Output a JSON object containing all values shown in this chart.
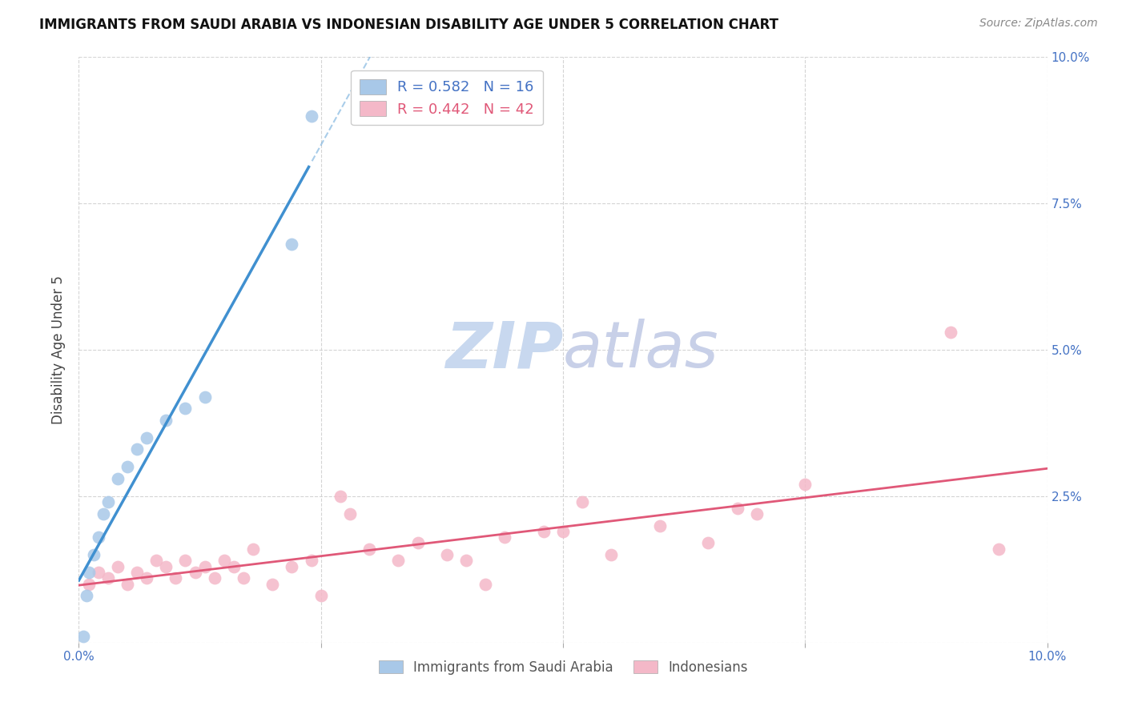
{
  "title": "IMMIGRANTS FROM SAUDI ARABIA VS INDONESIAN DISABILITY AGE UNDER 5 CORRELATION CHART",
  "source": "Source: ZipAtlas.com",
  "ylabel": "Disability Age Under 5",
  "xlim": [
    0,
    0.1
  ],
  "ylim": [
    0,
    0.1
  ],
  "background_color": "#ffffff",
  "grid_color": "#d0d0d0",
  "saudi_R": 0.582,
  "saudi_N": 16,
  "indonesian_R": 0.442,
  "indonesian_N": 42,
  "saudi_color": "#a8c8e8",
  "indonesian_color": "#f4b8c8",
  "trend_saudi_color": "#4090d0",
  "trend_indonesian_color": "#e05878",
  "saudi_x": [
    0.0005,
    0.0008,
    0.001,
    0.0015,
    0.002,
    0.0025,
    0.003,
    0.004,
    0.005,
    0.006,
    0.007,
    0.009,
    0.011,
    0.013,
    0.022,
    0.024
  ],
  "saudi_y": [
    0.001,
    0.008,
    0.012,
    0.015,
    0.018,
    0.022,
    0.024,
    0.028,
    0.03,
    0.033,
    0.035,
    0.038,
    0.04,
    0.042,
    0.068,
    0.09
  ],
  "indonesian_x": [
    0.001,
    0.002,
    0.003,
    0.004,
    0.005,
    0.006,
    0.007,
    0.008,
    0.009,
    0.01,
    0.011,
    0.012,
    0.013,
    0.014,
    0.015,
    0.016,
    0.017,
    0.018,
    0.02,
    0.022,
    0.024,
    0.025,
    0.027,
    0.028,
    0.03,
    0.033,
    0.035,
    0.038,
    0.04,
    0.042,
    0.044,
    0.048,
    0.05,
    0.052,
    0.055,
    0.06,
    0.065,
    0.068,
    0.07,
    0.075,
    0.09,
    0.095
  ],
  "indonesian_y": [
    0.01,
    0.012,
    0.011,
    0.013,
    0.01,
    0.012,
    0.011,
    0.014,
    0.013,
    0.011,
    0.014,
    0.012,
    0.013,
    0.011,
    0.014,
    0.013,
    0.011,
    0.016,
    0.01,
    0.013,
    0.014,
    0.008,
    0.025,
    0.022,
    0.016,
    0.014,
    0.017,
    0.015,
    0.014,
    0.01,
    0.018,
    0.019,
    0.019,
    0.024,
    0.015,
    0.02,
    0.017,
    0.023,
    0.022,
    0.027,
    0.053,
    0.016
  ],
  "watermark_zip": "ZIP",
  "watermark_atlas": "atlas",
  "watermark_color_zip": "#c8d8ef",
  "watermark_color_atlas": "#c8d0e8",
  "legend_saudi_label": "Immigrants from Saudi Arabia",
  "legend_indonesian_label": "Indonesians"
}
